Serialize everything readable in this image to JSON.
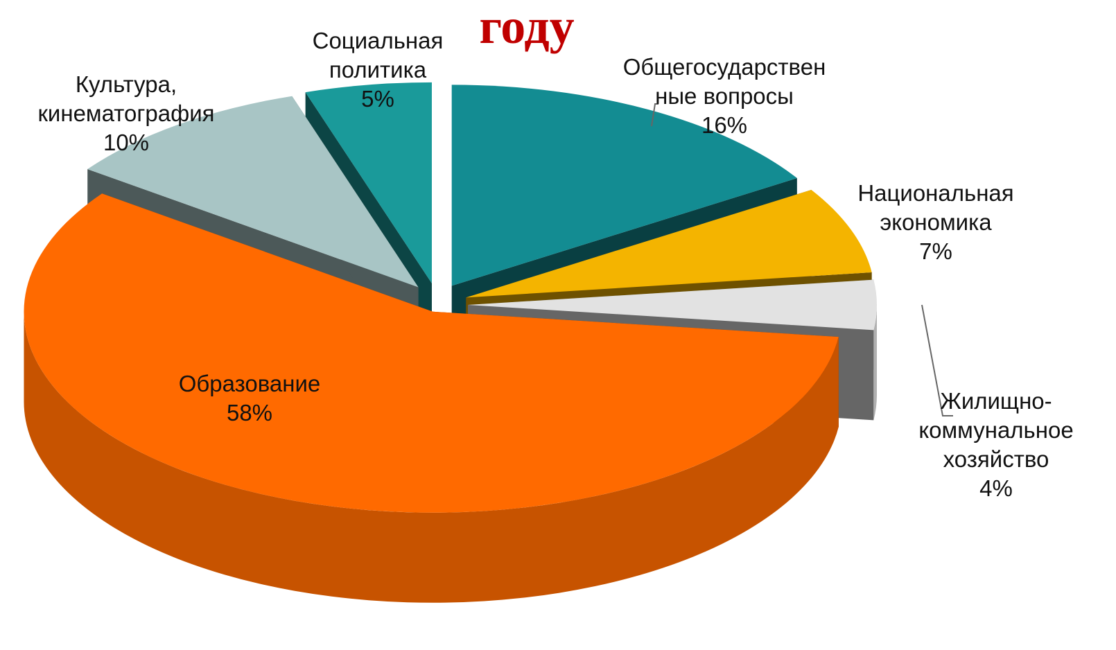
{
  "chart_data": {
    "type": "pie3d",
    "title": "году",
    "categories": [
      [
        "Общегосударствен",
        "ные вопросы"
      ],
      [
        "Национальная",
        "экономика"
      ],
      [
        "Жилищно-",
        "коммунальное",
        "хозяйство"
      ],
      [
        "Образование"
      ],
      [
        "Культура,",
        "кинематография"
      ],
      [
        "Социальная",
        "политика"
      ]
    ],
    "values": [
      16,
      7,
      4,
      58,
      10,
      5
    ],
    "value_labels": [
      "16%",
      "7%",
      "4%",
      "58%",
      "10%",
      "5%"
    ],
    "colors": [
      "#138c92",
      "#f4b400",
      "#e2e2e2",
      "#ff6a00",
      "#a8c5c5",
      "#1a9a9a"
    ]
  }
}
